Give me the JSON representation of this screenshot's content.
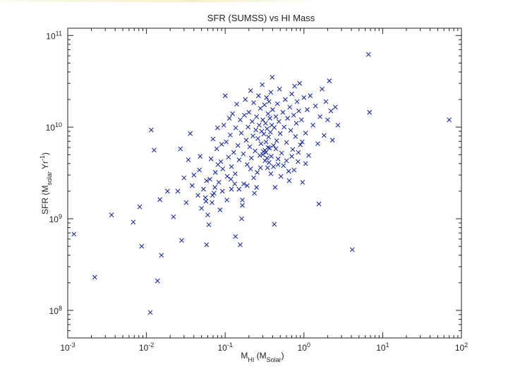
{
  "chart_data": {
    "type": "scatter",
    "title": "SFR (SUMSS) vs  HI Mass",
    "xlabel": {
      "base": "M",
      "sub": "HI",
      "open": " (M",
      "sub2": "Solar",
      "close": ")"
    },
    "ylabel": {
      "base": "SFR (M",
      "sub": "solar",
      "mid": " Yr",
      "sup": "-1",
      "close": ")"
    },
    "x_scale": "log",
    "y_scale": "log",
    "xlim": [
      0.001,
      100
    ],
    "ylim": [
      50000000.0,
      120000000000.0
    ],
    "grid": false,
    "legend": "none",
    "marker": "x",
    "color": "#1f2f9a",
    "x_ticks": [
      {
        "value": 0.001,
        "base": "10",
        "exp": "-3"
      },
      {
        "value": 0.01,
        "base": "10",
        "exp": "-2"
      },
      {
        "value": 0.1,
        "base": "10",
        "exp": "-1"
      },
      {
        "value": 1,
        "base": "10",
        "exp": "0"
      },
      {
        "value": 10,
        "base": "10",
        "exp": "1"
      },
      {
        "value": 100,
        "base": "10",
        "exp": "2"
      }
    ],
    "y_ticks": [
      {
        "value": 100000000.0,
        "base": "10",
        "exp": "8"
      },
      {
        "value": 1000000000.0,
        "base": "10",
        "exp": "9"
      },
      {
        "value": 10000000000.0,
        "base": "10",
        "exp": "10"
      },
      {
        "value": 100000000000.0,
        "base": "10",
        "exp": "11"
      }
    ],
    "points": [
      [
        0.0012,
        680000000.0
      ],
      [
        0.0022,
        230000000.0
      ],
      [
        0.0036,
        1100000000.0
      ],
      [
        0.0068,
        920000000.0
      ],
      [
        0.0082,
        1350000000.0
      ],
      [
        0.0087,
        500000000.0
      ],
      [
        0.0112,
        95000000.0
      ],
      [
        0.0115,
        9300000000.0
      ],
      [
        0.0125,
        5600000000.0
      ],
      [
        0.0138,
        210000000.0
      ],
      [
        0.0148,
        1620000000.0
      ],
      [
        0.0155,
        400000000.0
      ],
      [
        0.0185,
        2000000000.0
      ],
      [
        0.022,
        1050000000.0
      ],
      [
        0.025,
        2000000000.0
      ],
      [
        0.027,
        5800000000.0
      ],
      [
        0.028,
        580000000.0
      ],
      [
        0.03,
        2800000000.0
      ],
      [
        0.032,
        1500000000.0
      ],
      [
        0.034,
        4400000000.0
      ],
      [
        0.036,
        8500000000.0
      ],
      [
        0.038,
        2300000000.0
      ],
      [
        0.04,
        3000000000.0
      ],
      [
        0.045,
        1800000000.0
      ],
      [
        0.048,
        4800000000.0
      ],
      [
        0.05,
        1300000000.0
      ],
      [
        0.053,
        2100000000.0
      ],
      [
        0.056,
        1700000000.0
      ],
      [
        0.058,
        520000000.0
      ],
      [
        0.06,
        1100000000.0
      ],
      [
        0.062,
        860000000.0
      ],
      [
        0.064,
        2700000000.0
      ],
      [
        0.066,
        4500000000.0
      ],
      [
        0.068,
        1500000000.0
      ],
      [
        0.07,
        7400000000.0
      ],
      [
        0.072,
        1900000000.0
      ],
      [
        0.075,
        3200000000.0
      ],
      [
        0.078,
        5800000000.0
      ],
      [
        0.08,
        9800000000.0
      ],
      [
        0.083,
        2500000000.0
      ],
      [
        0.086,
        1250000000.0
      ],
      [
        0.088,
        4200000000.0
      ],
      [
        0.09,
        6500000000.0
      ],
      [
        0.093,
        3500000000.0
      ],
      [
        0.096,
        10500000000.0
      ],
      [
        0.1,
        22000000000.0
      ],
      [
        0.103,
        6900000000.0
      ],
      [
        0.106,
        2900000000.0
      ],
      [
        0.11,
        4700000000.0
      ],
      [
        0.113,
        12500000000.0
      ],
      [
        0.116,
        8200000000.0
      ],
      [
        0.12,
        3700000000.0
      ],
      [
        0.124,
        14000000000.0
      ],
      [
        0.128,
        5300000000.0
      ],
      [
        0.132,
        2400000000.0
      ],
      [
        0.136,
        9800000000.0
      ],
      [
        0.14,
        17800000000.0
      ],
      [
        0.145,
        6300000000.0
      ],
      [
        0.15,
        4400000000.0
      ],
      [
        0.155,
        12000000000.0
      ],
      [
        0.16,
        8600000000.0
      ],
      [
        0.165,
        1600000000.0
      ],
      [
        0.17,
        5100000000.0
      ],
      [
        0.175,
        13500000000.0
      ],
      [
        0.18,
        20000000000.0
      ],
      [
        0.185,
        7200000000.0
      ],
      [
        0.19,
        3900000000.0
      ],
      [
        0.195,
        10000000000.0
      ],
      [
        0.2,
        14500000000.0
      ],
      [
        0.205,
        6100000000.0
      ],
      [
        0.21,
        25000000000.0
      ],
      [
        0.215,
        4600000000.0
      ],
      [
        0.22,
        11500000000.0
      ],
      [
        0.225,
        8000000000.0
      ],
      [
        0.23,
        18500000000.0
      ],
      [
        0.235,
        1900000000.0
      ],
      [
        0.24,
        5500000000.0
      ],
      [
        0.245,
        9300000000.0
      ],
      [
        0.25,
        13000000000.0
      ],
      [
        0.255,
        3200000000.0
      ],
      [
        0.26,
        7500000000.0
      ],
      [
        0.265,
        22000000000.0
      ],
      [
        0.27,
        10500000000.0
      ],
      [
        0.275,
        4900000000.0
      ],
      [
        0.28,
        16000000000.0
      ],
      [
        0.285,
        6600000000.0
      ],
      [
        0.29,
        9000000000.0
      ],
      [
        0.295,
        29000000000.0
      ],
      [
        0.3,
        12000000000.0
      ],
      [
        0.305,
        5400000000.0
      ],
      [
        0.31,
        8400000000.0
      ],
      [
        0.315,
        17500000000.0
      ],
      [
        0.32,
        4300000000.0
      ],
      [
        0.325,
        11000000000.0
      ],
      [
        0.33,
        6900000000.0
      ],
      [
        0.335,
        21000000000.0
      ],
      [
        0.34,
        9600000000.0
      ],
      [
        0.345,
        3600000000.0
      ],
      [
        0.35,
        14000000000.0
      ],
      [
        0.355,
        7800000000.0
      ],
      [
        0.36,
        19000000000.0
      ],
      [
        0.365,
        5900000000.0
      ],
      [
        0.37,
        12500000000.0
      ],
      [
        0.375,
        8800000000.0
      ],
      [
        0.38,
        24000000000.0
      ],
      [
        0.385,
        4800000000.0
      ],
      [
        0.39,
        10500000000.0
      ],
      [
        0.395,
        35000000000.0
      ],
      [
        0.4,
        15500000000.0
      ],
      [
        0.41,
        6300000000.0
      ],
      [
        0.42,
        9900000000.0
      ],
      [
        0.43,
        2200000000.0
      ],
      [
        0.44,
        13000000000.0
      ],
      [
        0.45,
        7100000000.0
      ],
      [
        0.46,
        18000000000.0
      ],
      [
        0.47,
        3900000000.0
      ],
      [
        0.48,
        11500000000.0
      ],
      [
        0.49,
        26000000000.0
      ],
      [
        0.5,
        8500000000.0
      ],
      [
        0.52,
        5200000000.0
      ],
      [
        0.54,
        14500000000.0
      ],
      [
        0.56,
        10000000000.0
      ],
      [
        0.58,
        20000000000.0
      ],
      [
        0.6,
        6800000000.0
      ],
      [
        0.62,
        12500000000.0
      ],
      [
        0.64,
        3300000000.0
      ],
      [
        0.66,
        16500000000.0
      ],
      [
        0.68,
        9200000000.0
      ],
      [
        0.7,
        23000000000.0
      ],
      [
        0.72,
        5700000000.0
      ],
      [
        0.74,
        13500000000.0
      ],
      [
        0.76,
        28000000000.0
      ],
      [
        0.78,
        7900000000.0
      ],
      [
        0.8,
        11000000000.0
      ],
      [
        0.82,
        19000000000.0
      ],
      [
        0.84,
        4200000000.0
      ],
      [
        0.86,
        15000000000.0
      ],
      [
        0.88,
        30000000000.0
      ],
      [
        0.9,
        6400000000.0
      ],
      [
        0.93,
        12000000000.0
      ],
      [
        0.96,
        2500000000.0
      ],
      [
        1.0,
        21000000000.0
      ],
      [
        1.05,
        8600000000.0
      ],
      [
        1.1,
        15500000000.0
      ],
      [
        1.15,
        4900000000.0
      ],
      [
        1.2,
        22000000000.0
      ],
      [
        1.3,
        10500000000.0
      ],
      [
        1.4,
        17000000000.0
      ],
      [
        1.5,
        6600000000.0
      ],
      [
        1.55,
        1450000000.0
      ],
      [
        1.6,
        13000000000.0
      ],
      [
        1.7,
        26000000000.0
      ],
      [
        1.8,
        8100000000.0
      ],
      [
        1.9,
        19000000000.0
      ],
      [
        2.0,
        12000000000.0
      ],
      [
        2.1,
        32000000000.0
      ],
      [
        2.2,
        15000000000.0
      ],
      [
        2.3,
        7200000000.0
      ],
      [
        2.5,
        16500000000.0
      ],
      [
        2.7,
        10500000000.0
      ],
      [
        4.1,
        460000000.0
      ],
      [
        6.6,
        62000000000.0
      ],
      [
        6.8,
        14500000000.0
      ],
      [
        70,
        12000000000.0
      ],
      [
        0.047,
        3400000000.0
      ],
      [
        0.058,
        2600000000.0
      ],
      [
        0.069,
        1800000000.0
      ],
      [
        0.074,
        2200000000.0
      ],
      [
        0.081,
        3900000000.0
      ],
      [
        0.092,
        2000000000.0
      ],
      [
        0.105,
        1600000000.0
      ],
      [
        0.118,
        2700000000.0
      ],
      [
        0.134,
        3100000000.0
      ],
      [
        0.15,
        2100000000.0
      ],
      [
        0.162,
        1000000000.0
      ],
      [
        0.172,
        2400000000.0
      ],
      [
        0.19,
        2300000000.0
      ],
      [
        0.21,
        3500000000.0
      ],
      [
        0.23,
        2800000000.0
      ],
      [
        0.25,
        2200000000.0
      ],
      [
        0.28,
        3600000000.0
      ],
      [
        0.3,
        5000000000.0
      ],
      [
        0.32,
        5600000000.0
      ],
      [
        0.33,
        5300000000.0
      ],
      [
        0.34,
        4600000000.0
      ],
      [
        0.35,
        6000000000.0
      ],
      [
        0.36,
        4100000000.0
      ],
      [
        0.38,
        3100000000.0
      ],
      [
        0.41,
        3700000000.0
      ],
      [
        0.44,
        5800000000.0
      ],
      [
        0.47,
        4500000000.0
      ],
      [
        0.51,
        2900000000.0
      ],
      [
        0.55,
        3800000000.0
      ],
      [
        0.6,
        4300000000.0
      ],
      [
        0.65,
        2600000000.0
      ],
      [
        0.7,
        4800000000.0
      ],
      [
        0.75,
        3400000000.0
      ],
      [
        0.85,
        5300000000.0
      ],
      [
        0.95,
        6900000000.0
      ],
      [
        1.05,
        4000000000.0
      ],
      [
        0.135,
        640000000.0
      ],
      [
        0.165,
        1400000000.0
      ],
      [
        0.42,
        870000000.0
      ],
      [
        0.155,
        520000000.0
      ],
      [
        0.057,
        1550000000.0
      ],
      [
        0.12,
        2100000000.0
      ]
    ]
  }
}
